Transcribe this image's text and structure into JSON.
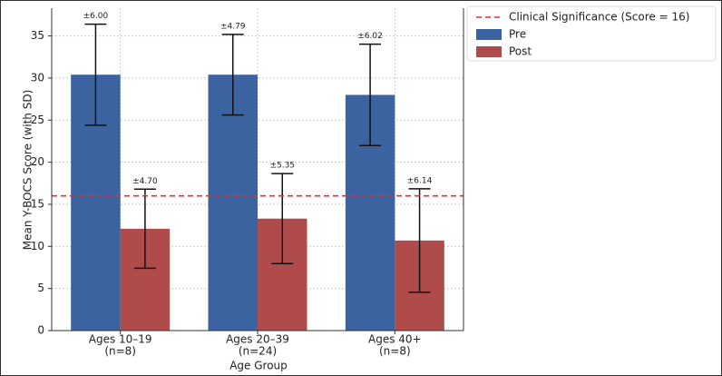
{
  "chart_data": {
    "type": "bar",
    "y_label": "Mean Y-BOCS Score (with SD)",
    "x_label": "Age Group",
    "categories": [
      [
        "Ages 10–19",
        "(n=8)"
      ],
      [
        "Ages 20–39",
        "(n=24)"
      ],
      [
        "Ages 40+",
        "(n=8)"
      ]
    ],
    "series": [
      {
        "name": "Pre",
        "color": "#3b63a0",
        "values": [
          30.4,
          30.4,
          28.0
        ],
        "errors": [
          6.0,
          4.79,
          6.02
        ],
        "error_labels": [
          "±6.00",
          "±4.79",
          "±6.02"
        ]
      },
      {
        "name": "Post",
        "color": "#b04b4b",
        "values": [
          12.1,
          13.3,
          10.7
        ],
        "errors": [
          4.7,
          5.35,
          6.14
        ],
        "error_labels": [
          "±4.70",
          "±5.35",
          "±6.14"
        ]
      }
    ],
    "reference_line": {
      "value": 16,
      "label": "Clinical Significance (Score = 16)",
      "color": "#e03030"
    },
    "ylim": [
      0,
      38.3
    ],
    "yticks": [
      0,
      5,
      10,
      15,
      20,
      25,
      30,
      35
    ],
    "grid": true,
    "legend": "outside-upper-right"
  }
}
